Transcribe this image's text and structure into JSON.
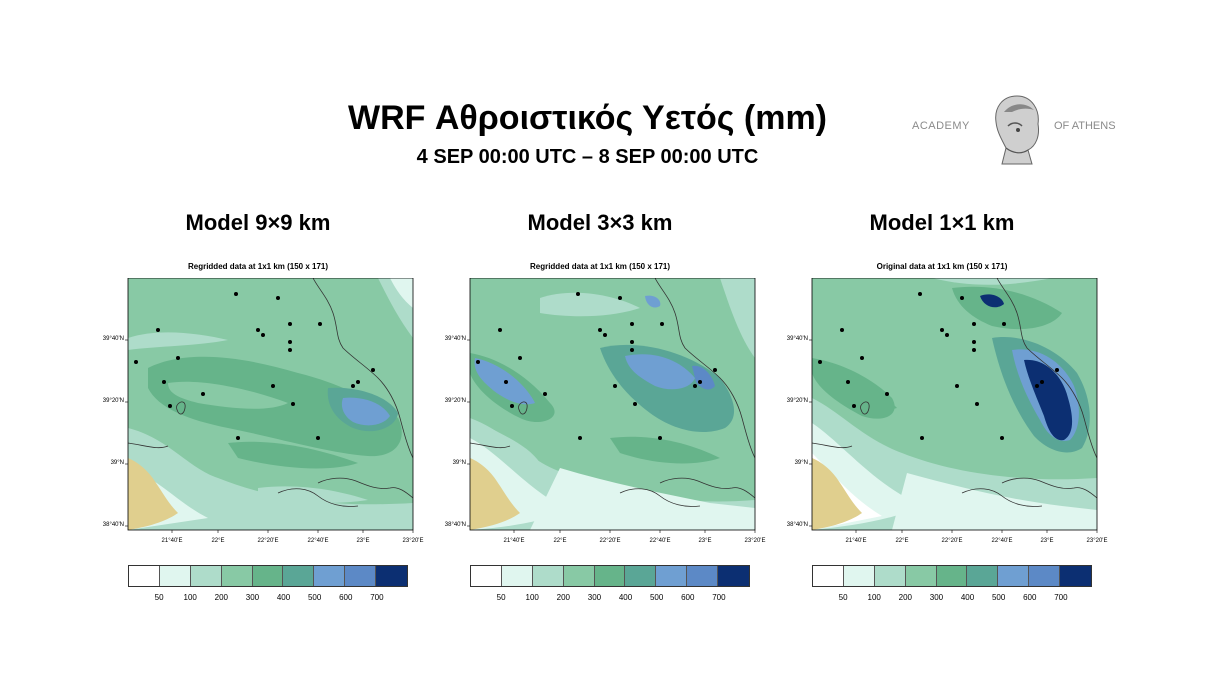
{
  "header": {
    "title": "WRF Αθροιστικός Υετός (mm)",
    "subtitle": "4 SEP 00:00 UTC – 8 SEP 00:00 UTC"
  },
  "logo": {
    "left_text": "ACADEMY",
    "right_text": "OF ATHENS",
    "icon": "athena-head-icon"
  },
  "axes": {
    "lat_labels": [
      "39°40'N",
      "39°20'N",
      "39°N",
      "38°40'N"
    ],
    "lon_labels": [
      "21°40'E",
      "22°E",
      "22°20'E",
      "22°40'E",
      "23°E",
      "23°20'E"
    ]
  },
  "colorbar": {
    "colors": [
      "#ffffff",
      "#e0f6ef",
      "#aedcca",
      "#88c9a5",
      "#66b48a",
      "#5aa696",
      "#6f9fd2",
      "#5c89c6",
      "#0c2f72"
    ],
    "levels": [
      "50",
      "100",
      "200",
      "300",
      "400",
      "500",
      "600",
      "700"
    ]
  },
  "panels": [
    {
      "model_title": "Model 9×9 km",
      "map_title": "Regridded data at 1x1 km (150 x 171)"
    },
    {
      "model_title": "Model 3×3 km",
      "map_title": "Regridded data at 1x1 km (150 x 171)"
    },
    {
      "model_title": "Model 1×1 km",
      "map_title": "Original data at 1x1 km (150 x 171)"
    }
  ]
}
